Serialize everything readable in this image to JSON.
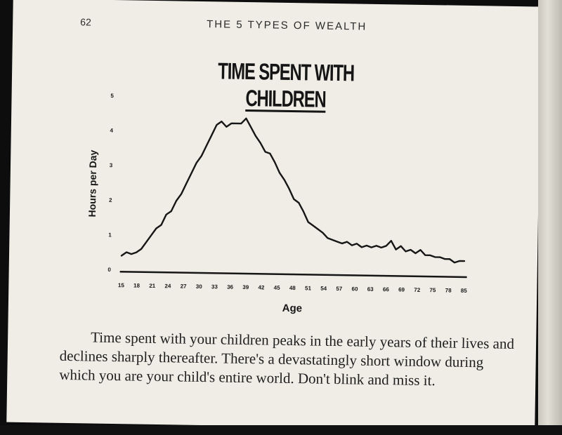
{
  "page": {
    "page_number": "62",
    "running_head": "THE 5 TYPES OF WEALTH",
    "caption": "Time spent with your children peaks in the early years of their lives and declines sharply thereafter. There's a devastatingly short window during which you are your child's entire world. Don't blink and miss it."
  },
  "chart_data": {
    "type": "line",
    "title_prefix": "TIME SPENT WITH",
    "title_emphasis": "CHILDREN",
    "xlabel": "Age",
    "ylabel": "Hours per Day",
    "xlim": [
      15,
      85
    ],
    "ylim": [
      0,
      5
    ],
    "x_ticks": [
      15,
      18,
      21,
      24,
      27,
      30,
      33,
      36,
      39,
      42,
      45,
      48,
      51,
      54,
      57,
      60,
      63,
      66,
      69,
      72,
      75,
      78,
      85
    ],
    "y_ticks": [
      0,
      1,
      2,
      3,
      4,
      5
    ],
    "grid": false,
    "series": [
      {
        "x": [
          15,
          16,
          17,
          18,
          19,
          20,
          21,
          22,
          23,
          24,
          25,
          26,
          27,
          28,
          29,
          30,
          31,
          32,
          33,
          34,
          35,
          36,
          37,
          38,
          39,
          40,
          41,
          42,
          43,
          44,
          45,
          46,
          47,
          48,
          49,
          50,
          51,
          52,
          53,
          54,
          55,
          56,
          57,
          58,
          59,
          60,
          61,
          62,
          63,
          64,
          65,
          66,
          67,
          68,
          69,
          70,
          71,
          72,
          73,
          74,
          75,
          76,
          77,
          78,
          79,
          80,
          81,
          82,
          83,
          84,
          85
        ],
        "y": [
          0.4,
          0.5,
          0.45,
          0.5,
          0.6,
          0.8,
          1.0,
          1.2,
          1.3,
          1.6,
          1.7,
          2.0,
          2.2,
          2.5,
          2.8,
          3.1,
          3.3,
          3.6,
          3.9,
          4.2,
          4.3,
          4.15,
          4.25,
          4.25,
          4.25,
          4.4,
          4.15,
          3.9,
          3.7,
          3.45,
          3.4,
          3.15,
          2.85,
          2.65,
          2.4,
          2.1,
          2.0,
          1.75,
          1.45,
          1.35,
          1.25,
          1.15,
          1.0,
          0.95,
          0.9,
          0.85,
          0.9,
          0.8,
          0.85,
          0.75,
          0.8,
          0.75,
          0.8,
          0.75,
          0.8,
          0.95,
          0.7,
          0.8,
          0.65,
          0.7,
          0.6,
          0.7,
          0.55,
          0.55,
          0.5,
          0.5,
          0.45,
          0.45,
          0.35,
          0.4,
          0.4
        ]
      }
    ],
    "line_color": "#161616"
  }
}
